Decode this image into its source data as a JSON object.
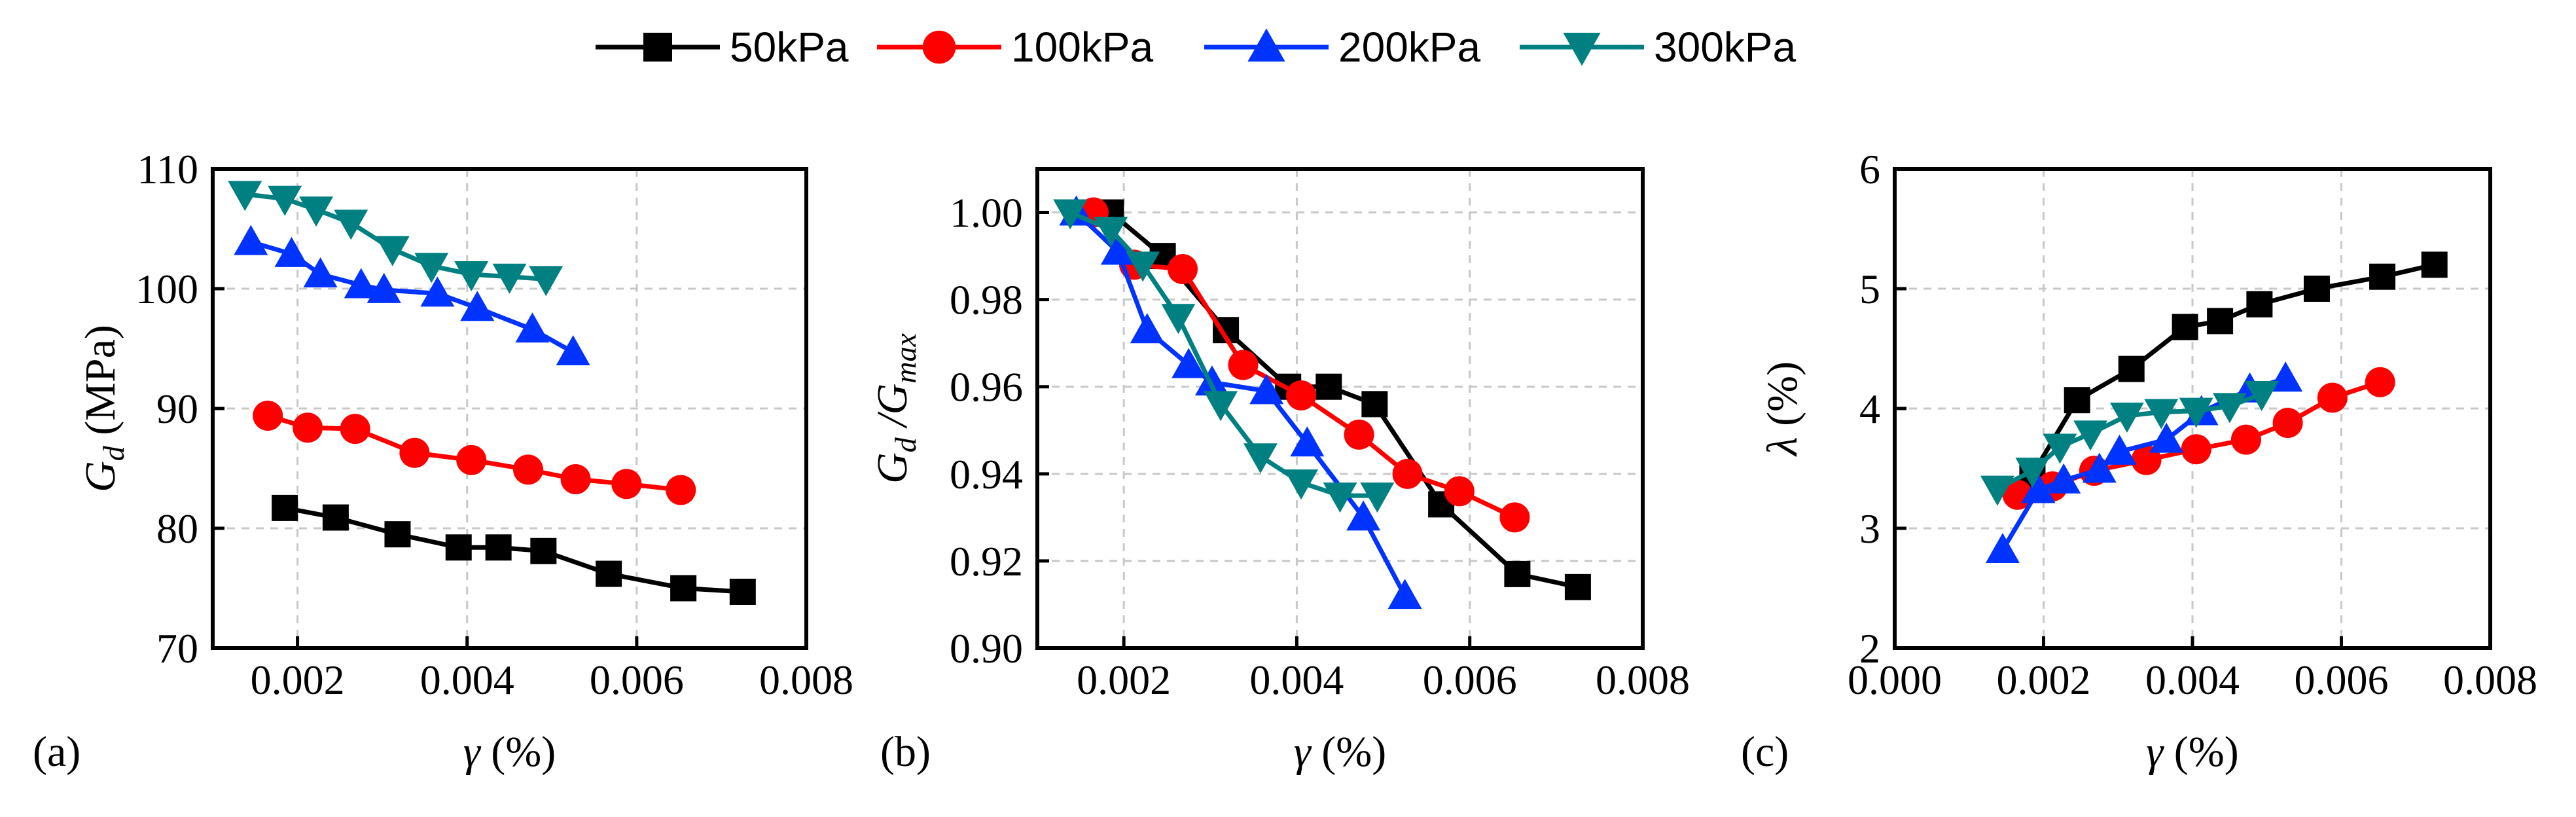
{
  "legend": [
    {
      "name": "50kPa",
      "color": "#000000",
      "marker": "square"
    },
    {
      "name": "100kPa",
      "color": "#ff0000",
      "marker": "circle"
    },
    {
      "name": "200kPa",
      "color": "#0033ff",
      "marker": "triangle-up"
    },
    {
      "name": "300kPa",
      "color": "#008080",
      "marker": "triangle-down"
    }
  ],
  "chart_data": [
    {
      "type": "line",
      "panel_label": "(a)",
      "xlabel": "γ (%)",
      "ylabel": "G_d (MPa)",
      "ylabel_parts": {
        "main": "G",
        "sub": "d",
        "rest": " (MPa)"
      },
      "xlim": [
        0.001,
        0.008
      ],
      "ylim": [
        70,
        110
      ],
      "xticks": [
        0.002,
        0.004,
        0.006,
        0.008
      ],
      "xtick_labels": [
        "0.002",
        "0.004",
        "0.006",
        "0.008"
      ],
      "yticks": [
        70,
        80,
        90,
        100,
        110
      ],
      "ytick_labels": [
        "70",
        "80",
        "90",
        "100",
        "110"
      ],
      "series": [
        {
          "name": "50kPa",
          "x": [
            0.00185,
            0.00245,
            0.00318,
            0.0039,
            0.00437,
            0.0049,
            0.00567,
            0.00655,
            0.00725
          ],
          "y": [
            81.7,
            80.9,
            79.5,
            78.4,
            78.4,
            78.1,
            76.2,
            75.0,
            74.7
          ]
        },
        {
          "name": "100kPa",
          "x": [
            0.00165,
            0.00212,
            0.00268,
            0.00338,
            0.00405,
            0.00472,
            0.00528,
            0.00588,
            0.00652
          ],
          "y": [
            89.4,
            88.4,
            88.3,
            86.3,
            85.7,
            84.9,
            84.1,
            83.7,
            83.2
          ]
        },
        {
          "name": "200kPa",
          "x": [
            0.00145,
            0.00193,
            0.00227,
            0.00275,
            0.00302,
            0.00365,
            0.00412,
            0.00477,
            0.00525
          ],
          "y": [
            103.9,
            102.9,
            101.2,
            100.3,
            99.9,
            99.6,
            98.4,
            96.6,
            94.7
          ]
        },
        {
          "name": "300kPa",
          "x": [
            0.00138,
            0.00185,
            0.00222,
            0.00263,
            0.00312,
            0.00358,
            0.00405,
            0.0045,
            0.00493
          ],
          "y": [
            107.9,
            107.5,
            106.6,
            105.5,
            103.3,
            101.9,
            101.2,
            101.0,
            100.8
          ]
        }
      ]
    },
    {
      "type": "line",
      "panel_label": "(b)",
      "xlabel": "γ (%)",
      "ylabel": "G_d /G_max",
      "ylabel_parts": {
        "main": "G",
        "sub": "d",
        "mid": " /G",
        "sub2": "max"
      },
      "xlim": [
        0.001,
        0.008
      ],
      "ylim": [
        0.9,
        1.01
      ],
      "xticks": [
        0.002,
        0.004,
        0.006,
        0.008
      ],
      "xtick_labels": [
        "0.002",
        "0.004",
        "0.006",
        "0.008"
      ],
      "yticks": [
        0.9,
        0.92,
        0.94,
        0.96,
        0.98,
        1.0
      ],
      "ytick_labels": [
        "0.90",
        "0.92",
        "0.94",
        "0.96",
        "0.98",
        "1.00"
      ],
      "series": [
        {
          "name": "50kPa",
          "x": [
            0.00185,
            0.00245,
            0.00318,
            0.0039,
            0.00437,
            0.0049,
            0.00567,
            0.00655,
            0.00725
          ],
          "y": [
            1.0,
            0.99,
            0.973,
            0.96,
            0.96,
            0.956,
            0.933,
            0.917,
            0.914
          ]
        },
        {
          "name": "100kPa",
          "x": [
            0.00165,
            0.00212,
            0.00268,
            0.00338,
            0.00405,
            0.00472,
            0.00528,
            0.00588,
            0.00652
          ],
          "y": [
            1.0,
            0.988,
            0.987,
            0.965,
            0.958,
            0.949,
            0.94,
            0.936,
            0.93
          ]
        },
        {
          "name": "200kPa",
          "x": [
            0.00145,
            0.00193,
            0.00227,
            0.00275,
            0.00302,
            0.00365,
            0.00412,
            0.00477,
            0.00525
          ],
          "y": [
            1.0,
            0.991,
            0.973,
            0.965,
            0.961,
            0.959,
            0.947,
            0.93,
            0.912
          ]
        },
        {
          "name": "300kPa",
          "x": [
            0.00138,
            0.00185,
            0.00222,
            0.00263,
            0.00312,
            0.00358,
            0.00405,
            0.0045,
            0.00493
          ],
          "y": [
            1.0,
            0.996,
            0.988,
            0.976,
            0.956,
            0.944,
            0.938,
            0.935,
            0.935
          ]
        }
      ]
    },
    {
      "type": "line",
      "panel_label": "(c)",
      "xlabel": "γ (%)",
      "ylabel": "λ (%)",
      "ylabel_parts": {
        "main": "λ",
        "rest": " (%)"
      },
      "xlim": [
        0.0,
        0.008
      ],
      "ylim": [
        2,
        6
      ],
      "xticks": [
        0.0,
        0.002,
        0.004,
        0.006,
        0.008
      ],
      "xtick_labels": [
        "0.000",
        "0.002",
        "0.004",
        "0.006",
        "0.008"
      ],
      "yticks": [
        2,
        3,
        4,
        5,
        6
      ],
      "ytick_labels": [
        "2",
        "3",
        "4",
        "5",
        "6"
      ],
      "series": [
        {
          "name": "50kPa",
          "x": [
            0.00185,
            0.00245,
            0.00318,
            0.0039,
            0.00437,
            0.0049,
            0.00567,
            0.00655,
            0.00725
          ],
          "y": [
            3.45,
            4.07,
            4.33,
            4.68,
            4.73,
            4.87,
            5.0,
            5.1,
            5.2
          ]
        },
        {
          "name": "100kPa",
          "x": [
            0.00165,
            0.00212,
            0.00268,
            0.00338,
            0.00405,
            0.00472,
            0.00528,
            0.00588,
            0.00652
          ],
          "y": [
            3.28,
            3.35,
            3.48,
            3.57,
            3.66,
            3.74,
            3.88,
            4.09,
            4.22
          ]
        },
        {
          "name": "200kPa",
          "x": [
            0.00145,
            0.00193,
            0.00227,
            0.00275,
            0.00302,
            0.00365,
            0.00412,
            0.00477,
            0.00525
          ],
          "y": [
            2.82,
            3.32,
            3.4,
            3.49,
            3.64,
            3.74,
            3.97,
            4.16,
            4.25
          ]
        },
        {
          "name": "300kPa",
          "x": [
            0.00138,
            0.00185,
            0.00222,
            0.00263,
            0.00312,
            0.00358,
            0.00405,
            0.0045,
            0.00493
          ],
          "y": [
            3.33,
            3.48,
            3.68,
            3.79,
            3.94,
            3.97,
            3.98,
            4.02,
            4.12
          ]
        }
      ]
    }
  ]
}
